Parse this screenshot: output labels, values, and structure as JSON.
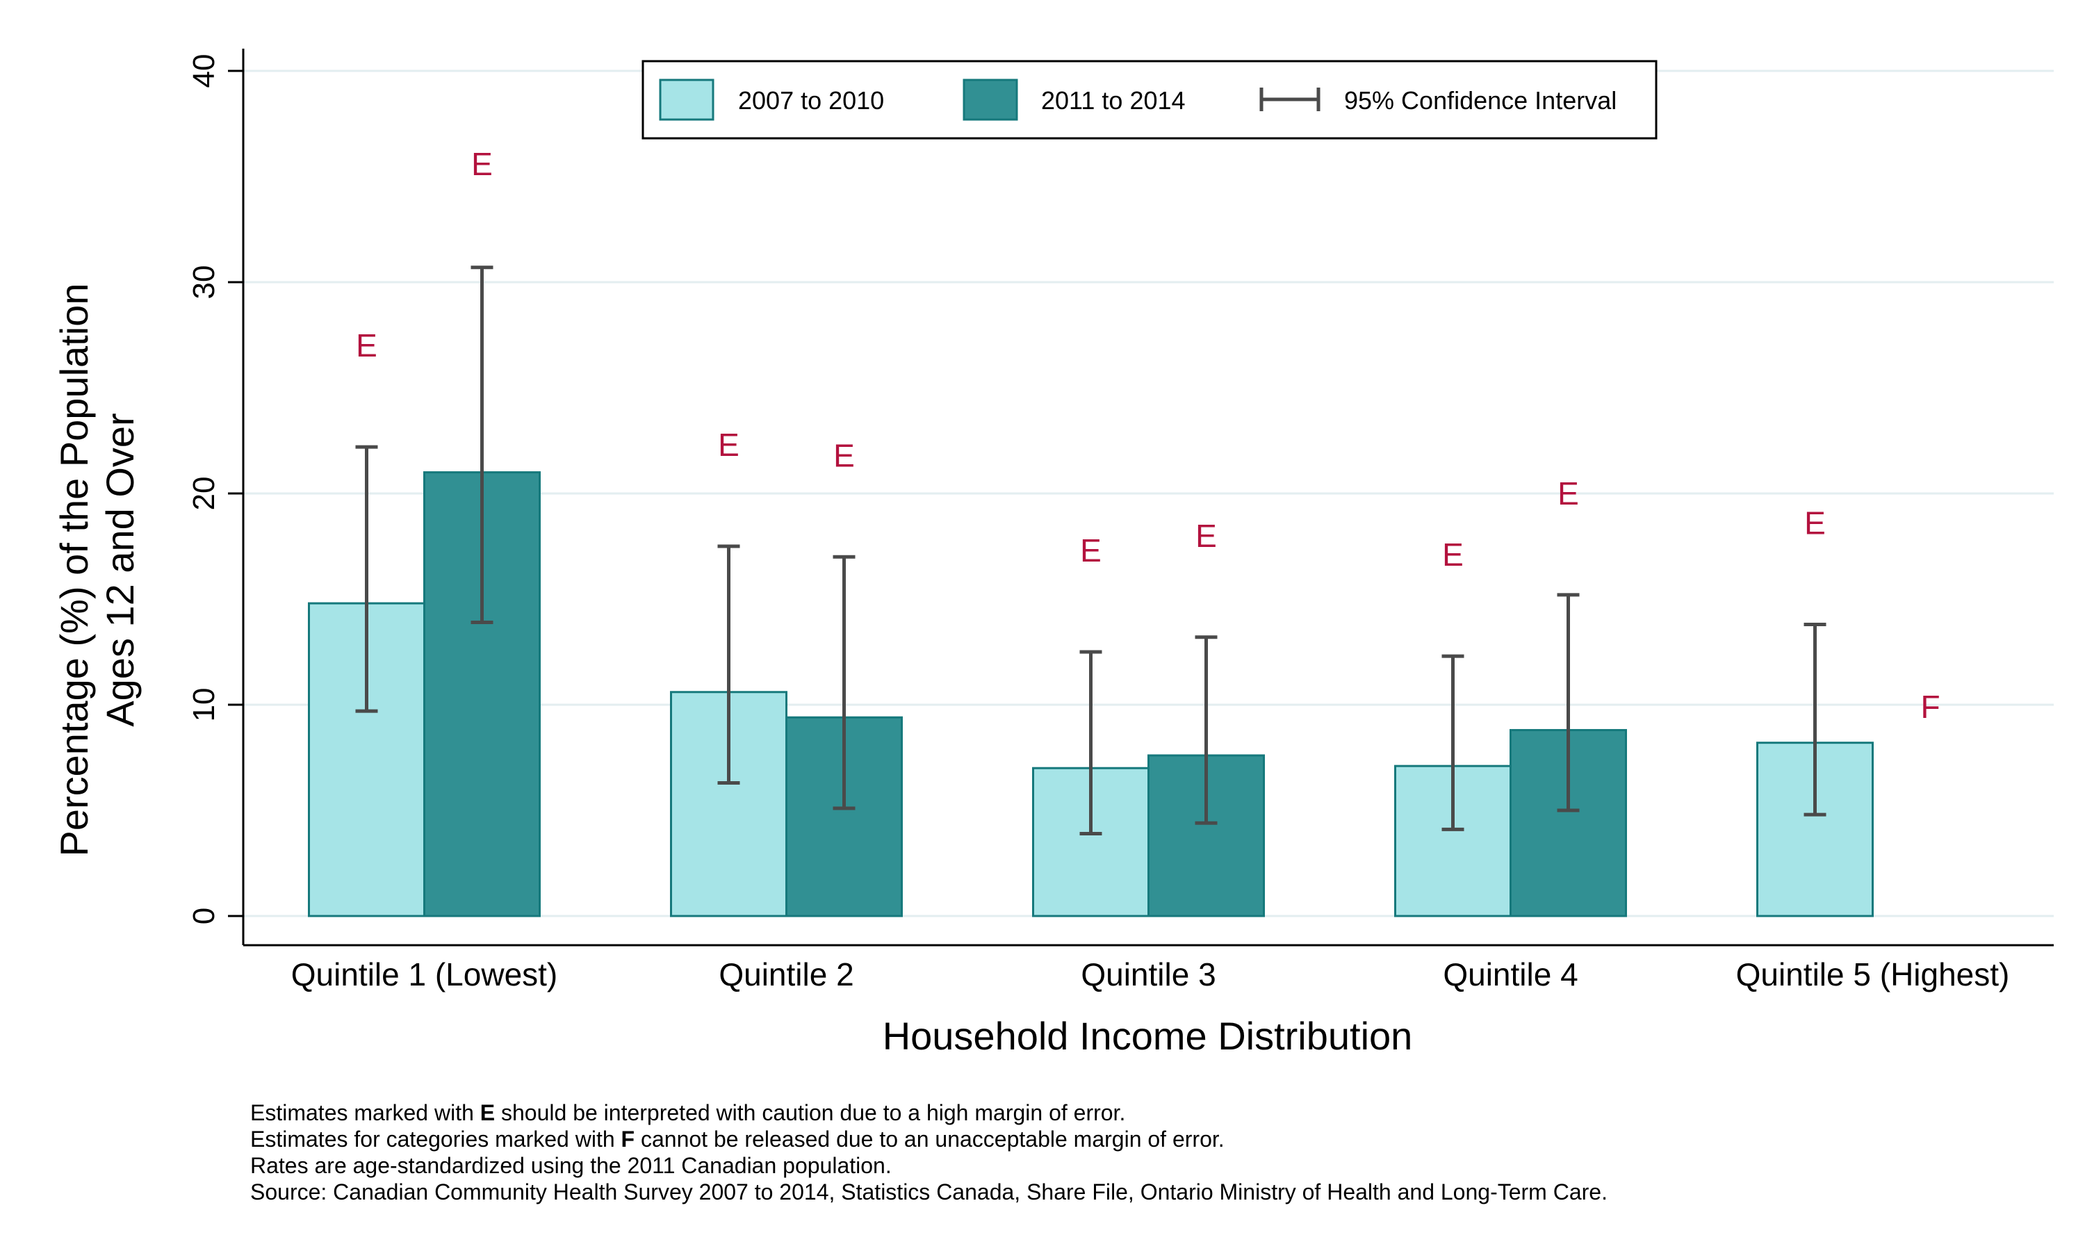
{
  "chart_data": {
    "type": "bar",
    "xlabel": "Household Income Distribution",
    "ylabel_lines": [
      "Percentage (%) of the Population",
      "Ages 12 and Over"
    ],
    "ylim": [
      0,
      40
    ],
    "yticks": [
      0,
      10,
      20,
      30,
      40
    ],
    "grid": true,
    "legend_position": "top",
    "categories": [
      "Quintile 1 (Lowest)",
      "Quintile 2",
      "Quintile 3",
      "Quintile 4",
      "Quintile 5 (Highest)"
    ],
    "series": [
      {
        "name": "2007 to 2010",
        "color": "#a6e4e7",
        "values": [
          14.8,
          10.6,
          7.0,
          7.1,
          8.2
        ],
        "ci_low": [
          9.7,
          6.3,
          3.9,
          4.1,
          4.8
        ],
        "ci_high": [
          22.2,
          17.5,
          12.5,
          12.3,
          13.8
        ],
        "flags": [
          "E",
          "E",
          "E",
          "E",
          "E"
        ],
        "flag_y": [
          27,
          22.3,
          17.3,
          17.1,
          18.6
        ]
      },
      {
        "name": "2011 to 2014",
        "color": "#319093",
        "values": [
          21.0,
          9.4,
          7.6,
          8.8,
          null
        ],
        "ci_low": [
          13.9,
          5.1,
          4.4,
          5.0,
          null
        ],
        "ci_high": [
          30.7,
          17.0,
          13.2,
          15.2,
          null
        ],
        "flags": [
          "E",
          "E",
          "E",
          "E",
          "F"
        ],
        "flag_y": [
          35.6,
          21.8,
          18.0,
          20.0,
          9.9
        ]
      }
    ],
    "legend_ci_label": "95% Confidence Interval"
  },
  "notes": {
    "line1": {
      "pre": "Estimates marked with ",
      "mark": "E",
      "post": " should be interpreted with caution due to a high margin of error."
    },
    "line2": {
      "pre": "Estimates for categories marked with ",
      "mark": "F",
      "post": " cannot be released due to an unacceptable margin of error."
    },
    "line3": "Rates are age-standardized using the 2011 Canadian population.",
    "line4": "Source: Canadian Community Health Survey 2007 to 2014, Statistics Canada, Share File, Ontario Ministry of Health and Long-Term Care."
  }
}
